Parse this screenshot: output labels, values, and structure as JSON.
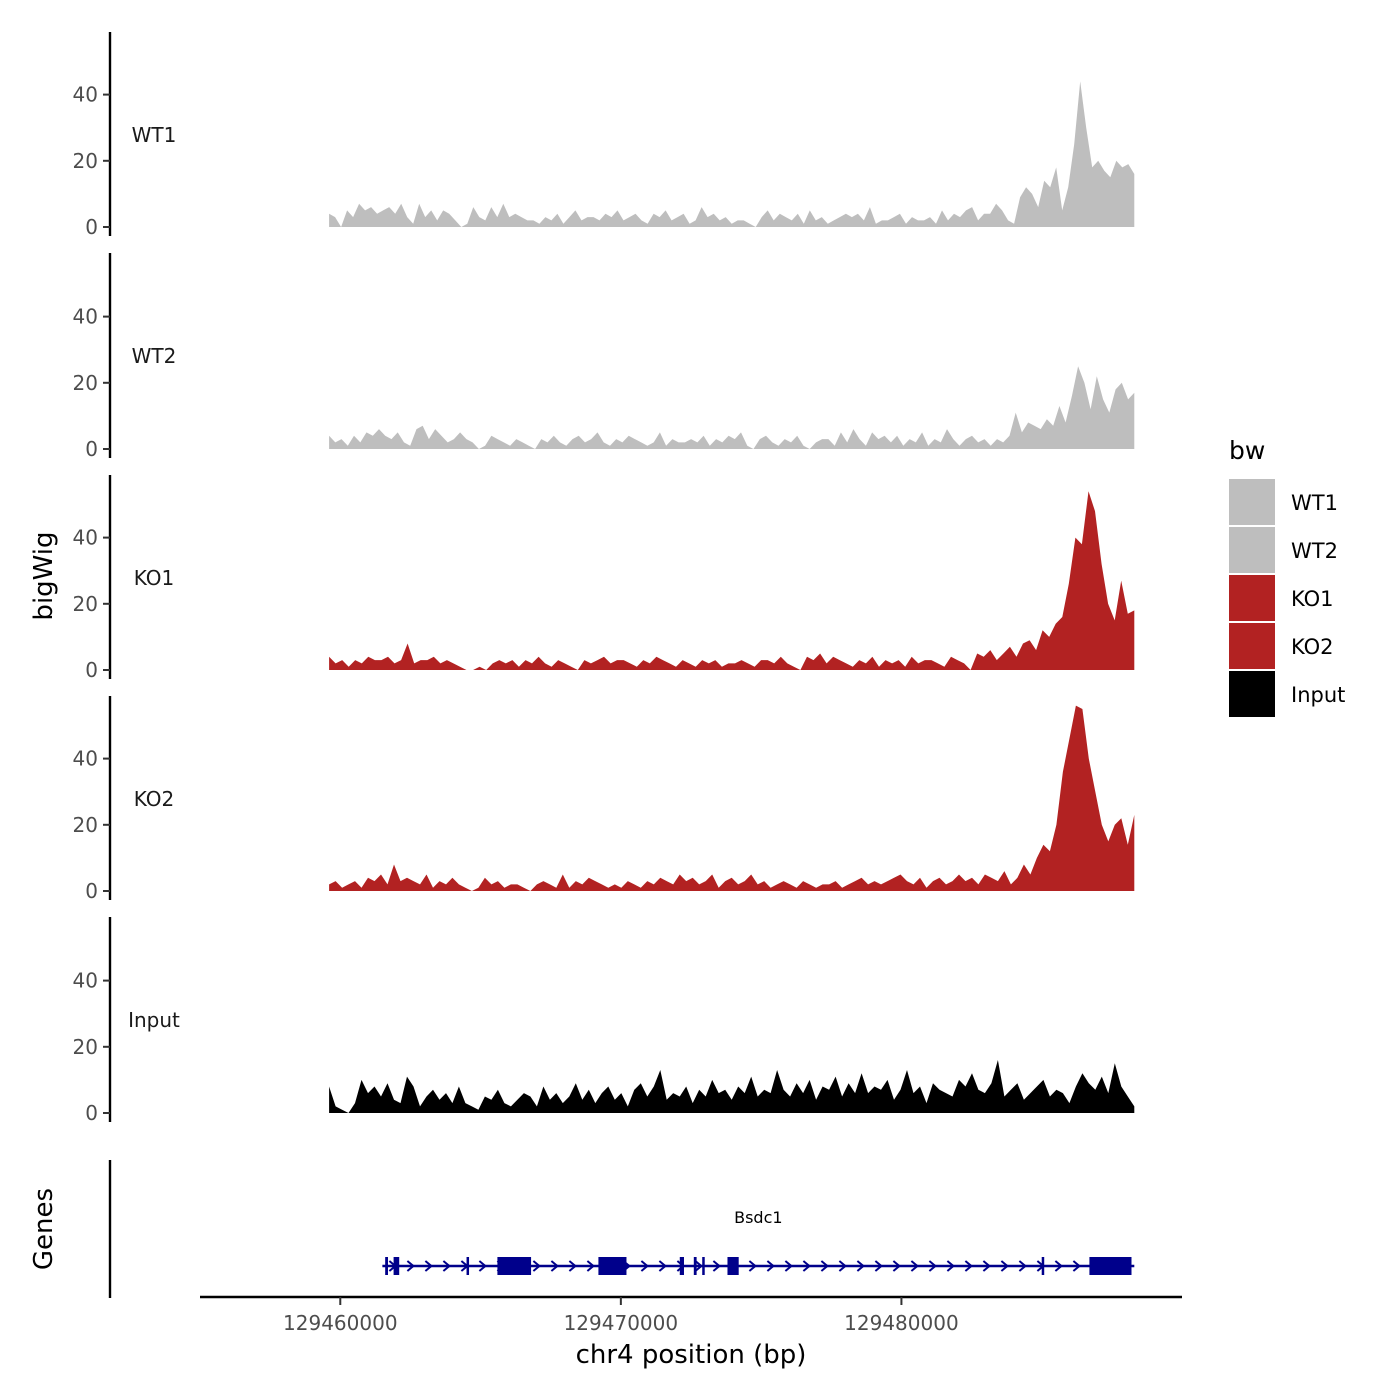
{
  "chart_data": {
    "type": "area",
    "xlabel": "chr4 position (bp)",
    "ylabel": "bigWig",
    "xlim": [
      129455000,
      129490000
    ],
    "x_ticks": [
      129460000,
      129470000,
      129480000
    ],
    "x_tick_labels": [
      "129460000",
      "129470000",
      "129480000"
    ],
    "ylim": [
      0,
      60
    ],
    "y_ticks": [
      0,
      20,
      40
    ],
    "y_tick_labels": [
      "0",
      "20",
      "40"
    ],
    "x_start": 129459600,
    "x_end": 129488300,
    "tracks": [
      {
        "name": "WT1",
        "color": "#BEBEBE",
        "values": [
          4,
          3,
          0,
          5,
          3,
          7,
          5,
          6,
          4,
          5,
          6,
          4,
          7,
          3,
          1,
          7,
          3,
          5,
          2,
          5,
          4,
          2,
          0,
          1,
          6,
          3,
          2,
          6,
          3,
          7,
          3,
          4,
          3,
          2,
          2,
          1,
          3,
          2,
          4,
          1,
          3,
          5,
          2,
          3,
          3,
          2,
          4,
          3,
          5,
          2,
          3,
          4,
          2,
          1,
          4,
          3,
          5,
          2,
          3,
          4,
          1,
          2,
          6,
          3,
          4,
          2,
          3,
          1,
          2,
          2,
          1,
          0,
          3,
          5,
          2,
          4,
          3,
          2,
          4,
          1,
          5,
          2,
          3,
          1,
          2,
          3,
          4,
          3,
          4,
          2,
          6,
          1,
          2,
          2,
          3,
          4,
          1,
          3,
          2,
          2,
          3,
          1,
          5,
          2,
          4,
          3,
          5,
          6,
          2,
          4,
          4,
          7,
          5,
          2,
          1,
          9,
          12,
          10,
          6,
          14,
          12,
          18,
          5,
          12,
          25,
          44,
          30,
          18,
          20,
          17,
          15,
          20,
          18,
          19,
          16
        ]
      },
      {
        "name": "WT2",
        "color": "#BEBEBE",
        "values": [
          4,
          2,
          3,
          1,
          4,
          2,
          5,
          4,
          6,
          4,
          3,
          5,
          2,
          1,
          6,
          7,
          3,
          6,
          4,
          2,
          3,
          5,
          3,
          2,
          0,
          1,
          4,
          3,
          2,
          1,
          3,
          2,
          1,
          0,
          3,
          2,
          4,
          2,
          1,
          3,
          4,
          2,
          3,
          5,
          2,
          1,
          3,
          2,
          4,
          3,
          2,
          1,
          2,
          5,
          1,
          3,
          2,
          2,
          3,
          2,
          4,
          1,
          3,
          2,
          4,
          3,
          5,
          1,
          0,
          3,
          4,
          2,
          1,
          3,
          2,
          4,
          1,
          0,
          2,
          3,
          3,
          1,
          5,
          2,
          6,
          3,
          1,
          5,
          3,
          4,
          2,
          4,
          1,
          3,
          2,
          5,
          1,
          3,
          2,
          6,
          3,
          1,
          3,
          4,
          2,
          3,
          1,
          3,
          2,
          4,
          11,
          5,
          8,
          7,
          6,
          9,
          7,
          13,
          8,
          16,
          25,
          20,
          12,
          22,
          15,
          11,
          18,
          20,
          15,
          17
        ]
      },
      {
        "name": "KO1",
        "color": "#B22222",
        "values": [
          4,
          2,
          3,
          1,
          3,
          2,
          4,
          3,
          3,
          4,
          2,
          3,
          8,
          2,
          3,
          3,
          4,
          2,
          3,
          2,
          1,
          0,
          0,
          1,
          0,
          2,
          3,
          2,
          3,
          1,
          3,
          2,
          4,
          2,
          1,
          3,
          2,
          1,
          0,
          3,
          2,
          3,
          4,
          2,
          3,
          3,
          2,
          1,
          3,
          2,
          4,
          3,
          2,
          1,
          3,
          2,
          1,
          3,
          2,
          3,
          1,
          2,
          2,
          3,
          2,
          1,
          3,
          3,
          2,
          4,
          2,
          1,
          0,
          4,
          3,
          5,
          2,
          4,
          3,
          2,
          1,
          3,
          2,
          4,
          1,
          3,
          2,
          3,
          1,
          4,
          2,
          3,
          3,
          2,
          1,
          4,
          3,
          2,
          0,
          5,
          4,
          6,
          3,
          5,
          7,
          4,
          8,
          9,
          6,
          12,
          10,
          14,
          16,
          26,
          40,
          38,
          54,
          48,
          32,
          20,
          15,
          27,
          17,
          18
        ]
      },
      {
        "name": "KO2",
        "color": "#B22222",
        "values": [
          2,
          3,
          1,
          2,
          3,
          1,
          4,
          3,
          5,
          2,
          8,
          3,
          4,
          3,
          2,
          5,
          1,
          3,
          2,
          4,
          2,
          1,
          0,
          1,
          4,
          2,
          3,
          1,
          2,
          2,
          1,
          0,
          2,
          3,
          2,
          1,
          5,
          1,
          3,
          2,
          4,
          3,
          2,
          1,
          2,
          1,
          3,
          2,
          1,
          3,
          2,
          4,
          3,
          2,
          5,
          3,
          4,
          2,
          3,
          5,
          1,
          3,
          4,
          2,
          3,
          5,
          2,
          3,
          1,
          2,
          3,
          2,
          1,
          3,
          2,
          1,
          2,
          2,
          3,
          1,
          2,
          3,
          4,
          2,
          3,
          2,
          3,
          4,
          5,
          3,
          2,
          4,
          1,
          3,
          4,
          2,
          3,
          5,
          3,
          4,
          2,
          5,
          4,
          3,
          6,
          2,
          4,
          8,
          5,
          10,
          14,
          12,
          20,
          36,
          46,
          56,
          55,
          40,
          30,
          20,
          15,
          20,
          22,
          14,
          23
        ]
      },
      {
        "name": "Input",
        "color": "#000000",
        "values": [
          8,
          2,
          1,
          0,
          3,
          10,
          6,
          8,
          5,
          9,
          4,
          3,
          11,
          8,
          2,
          5,
          7,
          4,
          6,
          3,
          8,
          3,
          2,
          1,
          5,
          4,
          7,
          3,
          2,
          4,
          6,
          5,
          2,
          8,
          4,
          6,
          3,
          5,
          9,
          4,
          7,
          3,
          6,
          8,
          4,
          6,
          2,
          7,
          9,
          5,
          8,
          13,
          4,
          6,
          5,
          8,
          3,
          7,
          5,
          10,
          6,
          7,
          4,
          8,
          6,
          11,
          5,
          7,
          6,
          13,
          7,
          5,
          9,
          6,
          10,
          4,
          8,
          7,
          11,
          5,
          9,
          6,
          12,
          6,
          8,
          7,
          10,
          4,
          7,
          13,
          6,
          8,
          3,
          9,
          7,
          6,
          5,
          10,
          8,
          12,
          7,
          6,
          9,
          16,
          5,
          7,
          9,
          4,
          6,
          8,
          10,
          5,
          7,
          6,
          3,
          8,
          12,
          9,
          7,
          11,
          6,
          15,
          8,
          5,
          2
        ]
      }
    ],
    "genes": [
      {
        "name": "Bsdc1",
        "strand": "+",
        "start": 129461500,
        "end": 129488300,
        "exons": [
          [
            129461600,
            129461700
          ],
          [
            129461900,
            129462100
          ],
          [
            129464500,
            129464560
          ],
          [
            129465600,
            129466800
          ],
          [
            129469200,
            129470200
          ],
          [
            129472100,
            129472250
          ],
          [
            129472600,
            129472700
          ],
          [
            129472900,
            129472960
          ],
          [
            129473800,
            129474200
          ],
          [
            129485000,
            129485070
          ],
          [
            129486700,
            129488200
          ]
        ]
      }
    ],
    "genes_track_label": "Genes",
    "legend": {
      "title": "bw",
      "entries": [
        {
          "label": "WT1",
          "color": "#BEBEBE"
        },
        {
          "label": "WT2",
          "color": "#BEBEBE"
        },
        {
          "label": "KO1",
          "color": "#B22222"
        },
        {
          "label": "KO2",
          "color": "#B22222"
        },
        {
          "label": "Input",
          "color": "#000000"
        }
      ],
      "position": "right"
    }
  }
}
